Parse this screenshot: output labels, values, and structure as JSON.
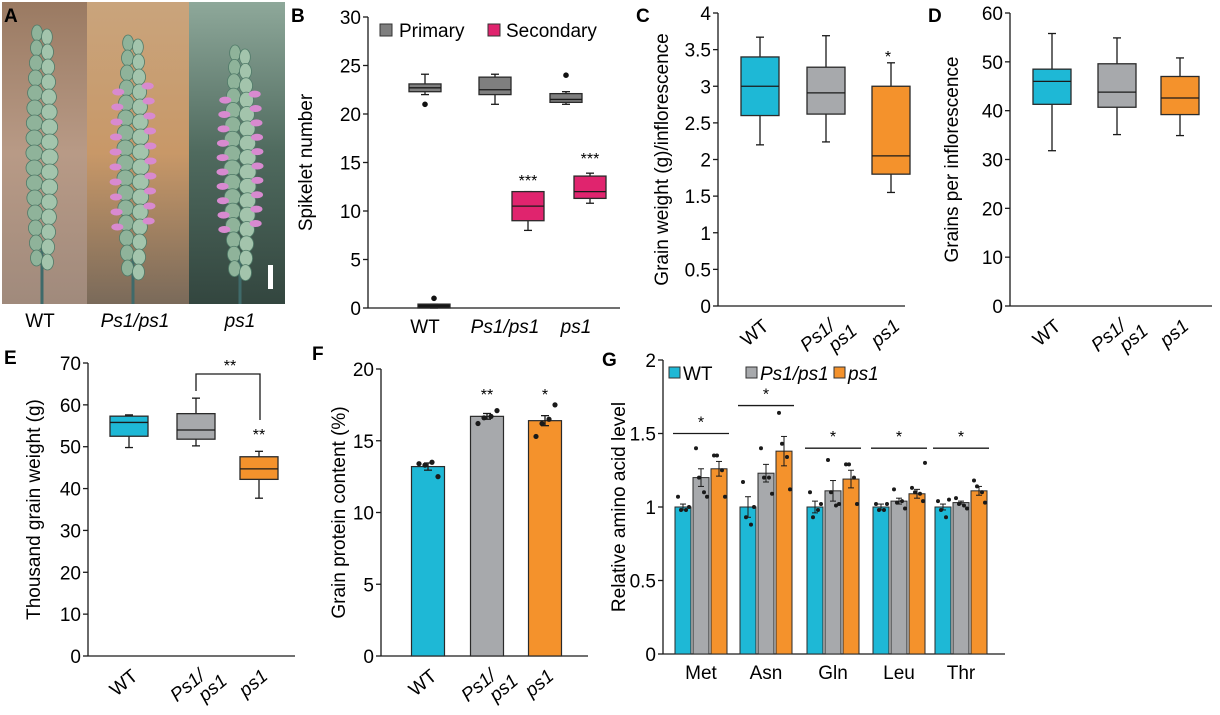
{
  "figure": {
    "colors": {
      "WT": "#1eb8d6",
      "Ps1/ps1": "#a7a9ac",
      "ps1": "#f4922c",
      "primary": "#7f7f7f",
      "secondary": "#e0246e",
      "axis": "#1a1a1a"
    },
    "panel_a": {
      "letter": "A",
      "photos": [
        {
          "label": "WT",
          "italic": false,
          "phenotype": "green spike"
        },
        {
          "label": "Ps1/ps1",
          "italic": true,
          "phenotype": "green spike with pink secondary spikelets"
        },
        {
          "label": "ps1",
          "italic": true,
          "phenotype": "green spike with pink secondary spikelets"
        }
      ],
      "scale_bar": true
    }
  },
  "chart_data": [
    {
      "panel": "B",
      "type": "box",
      "title": "",
      "xlabel": "",
      "ylabel": "Spikelet number",
      "ylim": [
        0,
        30
      ],
      "yticks": [
        "0",
        "5",
        "10",
        "15",
        "20",
        "25",
        "30"
      ],
      "categories": [
        "WT",
        "Ps1/ps1",
        "ps1"
      ],
      "categories_italic": [
        false,
        true,
        true
      ],
      "legend": {
        "position": "top",
        "entries": [
          "Primary",
          "Secondary"
        ]
      },
      "series": [
        {
          "name": "Primary",
          "boxes": [
            {
              "min": 22,
              "q1": 22.3,
              "median": 22.7,
              "q3": 23.1,
              "max": 24.1,
              "outliers": [
                21
              ]
            },
            {
              "min": 21,
              "q1": 22,
              "median": 22.5,
              "q3": 23.8,
              "max": 24.1,
              "outliers": []
            },
            {
              "min": 21,
              "q1": 21.2,
              "median": 21.5,
              "q3": 22.1,
              "max": 22.3,
              "outliers": [
                24
              ]
            }
          ]
        },
        {
          "name": "Secondary",
          "boxes": [
            {
              "min": 0,
              "q1": 0,
              "median": 0.2,
              "q3": 0.4,
              "max": 0.4,
              "outliers": [
                1
              ]
            },
            {
              "min": 8,
              "q1": 9,
              "median": 10.5,
              "q3": 12,
              "max": 12,
              "outliers": []
            },
            {
              "min": 10.8,
              "q1": 11.3,
              "median": 12,
              "q3": 13.6,
              "max": 13.9,
              "outliers": []
            }
          ]
        }
      ],
      "annotations": [
        {
          "category": "Ps1/ps1",
          "series": "Secondary",
          "text": "***"
        },
        {
          "category": "ps1",
          "series": "Secondary",
          "text": "***"
        }
      ]
    },
    {
      "panel": "C",
      "type": "box",
      "ylabel": "Grain weight (g)/inflorescence",
      "ylim": [
        0,
        4
      ],
      "yticks": [
        "0",
        "0.5",
        "1",
        "1.5",
        "2",
        "2.5",
        "3",
        "3.5",
        "4"
      ],
      "categories": [
        "WT",
        "Ps1/ps1",
        "ps1"
      ],
      "category_tick_labels": [
        "WT",
        "Ps1/\nps1",
        "ps1"
      ],
      "boxes": [
        {
          "min": 2.2,
          "q1": 2.6,
          "median": 3.0,
          "q3": 3.4,
          "max": 3.67
        },
        {
          "min": 2.24,
          "q1": 2.62,
          "median": 2.91,
          "q3": 3.26,
          "max": 3.69
        },
        {
          "min": 1.55,
          "q1": 1.8,
          "median": 2.05,
          "q3": 3.0,
          "max": 3.32
        }
      ],
      "annotations": [
        {
          "category": "ps1",
          "text": "*"
        }
      ]
    },
    {
      "panel": "D",
      "type": "box",
      "ylabel": "Grains per inflorescence",
      "ylim": [
        0,
        60
      ],
      "yticks": [
        "0",
        "10",
        "20",
        "30",
        "40",
        "50",
        "60"
      ],
      "categories": [
        "WT",
        "Ps1/ps1",
        "ps1"
      ],
      "boxes": [
        {
          "min": 31.8,
          "q1": 41.3,
          "median": 46,
          "q3": 48.5,
          "max": 55.8
        },
        {
          "min": 35.1,
          "q1": 40.7,
          "median": 43.8,
          "q3": 49.6,
          "max": 54.9
        },
        {
          "min": 34.9,
          "q1": 39.2,
          "median": 42.6,
          "q3": 47,
          "max": 50.8
        }
      ],
      "annotations": []
    },
    {
      "panel": "E",
      "type": "box",
      "ylabel": "Thousand grain weight (g)",
      "ylim": [
        0,
        70
      ],
      "yticks": [
        "0",
        "10",
        "20",
        "30",
        "40",
        "50",
        "60",
        "70"
      ],
      "categories": [
        "WT",
        "Ps1/ps1",
        "ps1"
      ],
      "boxes": [
        {
          "min": 49.8,
          "q1": 52.5,
          "median": 55.8,
          "q3": 57.3,
          "max": 57.6
        },
        {
          "min": 50.2,
          "q1": 51.8,
          "median": 54,
          "q3": 57.9,
          "max": 61.6
        },
        {
          "min": 37.7,
          "q1": 42.2,
          "median": 44.7,
          "q3": 47.6,
          "max": 48.9
        }
      ],
      "annotations": [
        {
          "category": "ps1",
          "text": "**"
        },
        {
          "bracket": [
            "Ps1/ps1",
            "ps1"
          ],
          "text": "**"
        }
      ]
    },
    {
      "panel": "F",
      "type": "bar",
      "ylabel": "Grain protein content (%)",
      "ylim": [
        0,
        20
      ],
      "yticks": [
        "0",
        "5",
        "10",
        "15",
        "20"
      ],
      "categories": [
        "WT",
        "Ps1/ps1",
        "ps1"
      ],
      "values": [
        13.2,
        16.7,
        16.4
      ],
      "errors": [
        0.25,
        0.2,
        0.35
      ],
      "points": [
        [
          13.4,
          13.3,
          13.5,
          12.5
        ],
        [
          16.2,
          16.6,
          16.7,
          17.1
        ],
        [
          15.3,
          16.2,
          16.5,
          17.5
        ]
      ],
      "annotations": [
        {
          "category": "Ps1/ps1",
          "text": "**"
        },
        {
          "category": "ps1",
          "text": "*"
        }
      ]
    },
    {
      "panel": "G",
      "type": "bar",
      "ylabel": "Relative amino acid level",
      "ylim": [
        0,
        2
      ],
      "yticks": [
        "0",
        "0.5",
        "1",
        "1.5",
        "2"
      ],
      "categories": [
        "Met",
        "Asn",
        "Gln",
        "Leu",
        "Thr"
      ],
      "legend": {
        "position": "top",
        "entries": [
          "WT",
          "Ps1/ps1",
          "ps1"
        ]
      },
      "series": [
        {
          "name": "WT",
          "values": [
            1.0,
            1.0,
            1.0,
            1.0,
            1.0
          ],
          "errors": [
            0.02,
            0.07,
            0.04,
            0.02,
            0.02
          ],
          "points": [
            [
              1.07,
              0.98,
              0.98,
              1.0
            ],
            [
              1.17,
              0.93,
              0.88,
              1.0
            ],
            [
              1.1,
              0.93,
              0.98,
              1.02
            ],
            [
              1.02,
              0.98,
              0.98,
              1.02
            ],
            [
              1.04,
              0.98,
              0.93,
              1.05
            ]
          ]
        },
        {
          "name": "Ps1/ps1",
          "values": [
            1.2,
            1.23,
            1.11,
            1.04,
            1.03
          ],
          "errors": [
            0.06,
            0.06,
            0.07,
            0.02,
            0.01
          ],
          "points": [
            [
              1.4,
              1.2,
              1.1,
              1.07
            ],
            [
              1.4,
              1.2,
              1.2,
              1.09
            ],
            [
              1.32,
              1.1,
              1.01,
              1.02
            ],
            [
              1.12,
              1.03,
              1.04,
              0.99
            ],
            [
              1.06,
              1.02,
              1.01,
              0.99
            ]
          ]
        },
        {
          "name": "ps1",
          "values": [
            1.26,
            1.38,
            1.19,
            1.09,
            1.11
          ],
          "errors": [
            0.05,
            0.1,
            0.06,
            0.03,
            0.03
          ],
          "points": [
            [
              1.35,
              1.35,
              1.25,
              1.07
            ],
            [
              1.64,
              1.43,
              1.34,
              1.12
            ],
            [
              1.29,
              1.29,
              1.2,
              1.02
            ],
            [
              1.13,
              1.1,
              1.09,
              1.04,
              1.3
            ],
            [
              1.18,
              1.14,
              1.1,
              1.03
            ]
          ]
        }
      ],
      "annotations": [
        {
          "category": "Met",
          "text": "*"
        },
        {
          "category": "Asn",
          "text": "*"
        },
        {
          "category": "Gln",
          "text": "*"
        },
        {
          "category": "Leu",
          "text": "*"
        },
        {
          "category": "Thr",
          "text": "*"
        }
      ]
    }
  ]
}
